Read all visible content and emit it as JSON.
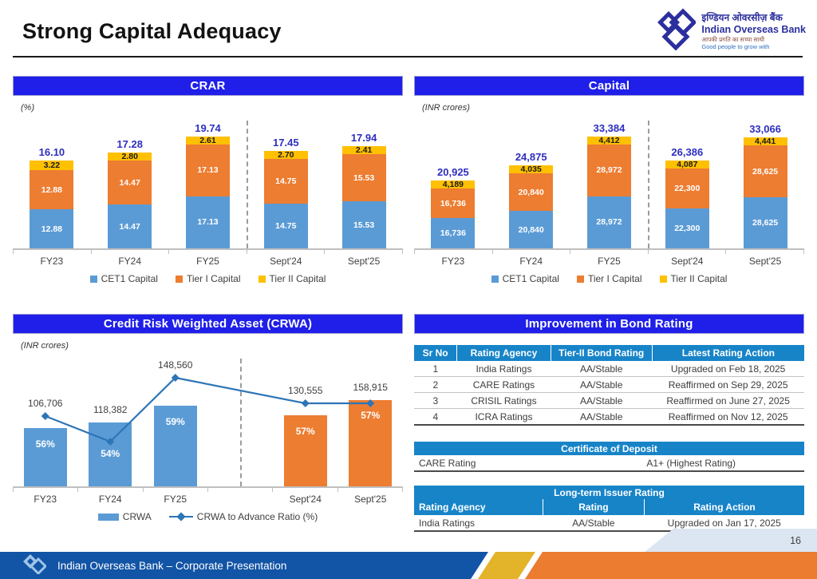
{
  "page": {
    "title": "Strong Capital Adequacy",
    "page_number": "16",
    "footer_text": "Indian Overseas Bank – Corporate Presentation"
  },
  "logo": {
    "name_hi": "इण्डियन ओवरसीज़ बैंक",
    "name_en": "Indian Overseas Bank",
    "tagline_hi": "आपकी प्रगति का सच्चा साथी",
    "tagline_en": "Good people to grow with"
  },
  "colors": {
    "banner_blue": "#1F1FE9",
    "table_header_blue": "#1884C8",
    "bar_blue": "#5B9BD5",
    "bar_orange": "#ED7D31",
    "bar_yellow": "#FFC000",
    "total_label_blue": "#2E2EC0",
    "line_blue": "#2E75B6",
    "footer_blue": "#1254A6",
    "footer_yellow": "#E3B329",
    "footer_orange": "#EC7C30"
  },
  "chart_data": [
    {
      "id": "crar",
      "type": "bar",
      "subtype": "stacked-bar",
      "title": "CRAR",
      "unit_label": "(%)",
      "categories": [
        "FY23",
        "FY24",
        "FY25",
        "Sept'24",
        "Sept'25"
      ],
      "series": [
        {
          "name": "CET1 Capital",
          "color": "#5B9BD5",
          "values": [
            12.88,
            14.47,
            17.13,
            14.75,
            15.53
          ],
          "labels": [
            "12.88",
            "14.47",
            "17.13",
            "14.75",
            "15.53"
          ]
        },
        {
          "name": "Tier I Capital",
          "color": "#ED7D31",
          "values": [
            12.88,
            14.47,
            17.13,
            14.75,
            15.53
          ],
          "labels": [
            "12.88",
            "14.47",
            "17.13",
            "14.75",
            "15.53"
          ]
        },
        {
          "name": "Tier II Capital",
          "color": "#FFC000",
          "dark_label": true,
          "values": [
            3.22,
            2.8,
            2.61,
            2.7,
            2.41
          ],
          "labels": [
            "3.22",
            "2.80",
            "2.61",
            "2.70",
            "2.41"
          ]
        }
      ],
      "totals": [
        "16.10",
        "17.28",
        "19.74",
        "17.45",
        "17.94"
      ],
      "divider_after": 3,
      "legend_position": "bottom"
    },
    {
      "id": "capital",
      "type": "bar",
      "subtype": "stacked-bar",
      "title": "Capital",
      "unit_label": "(INR crores)",
      "categories": [
        "FY23",
        "FY24",
        "FY25",
        "Sept'24",
        "Sept'25"
      ],
      "series": [
        {
          "name": "CET1 Capital",
          "color": "#5B9BD5",
          "values": [
            16736,
            20840,
            28972,
            22300,
            28625
          ],
          "labels": [
            "16,736",
            "20,840",
            "28,972",
            "22,300",
            "28,625"
          ]
        },
        {
          "name": "Tier I Capital",
          "color": "#ED7D31",
          "values": [
            16736,
            20840,
            28972,
            22300,
            28625
          ],
          "labels": [
            "16,736",
            "20,840",
            "28,972",
            "22,300",
            "28,625"
          ]
        },
        {
          "name": "Tier II Capital",
          "color": "#FFC000",
          "dark_label": true,
          "values": [
            4189,
            4035,
            4412,
            4087,
            4441
          ],
          "labels": [
            "4,189",
            "4,035",
            "4,412",
            "4,087",
            "4,441"
          ]
        }
      ],
      "totals": [
        "20,925",
        "24,875",
        "33,384",
        "26,386",
        "33,066"
      ],
      "divider_after": 3,
      "legend_position": "bottom"
    },
    {
      "id": "crwa",
      "type": "bar",
      "subtype": "bar-line-combo",
      "title": "Credit Risk Weighted Asset (CRWA)",
      "unit_label": "(INR crores)",
      "categories": [
        "FY23",
        "FY24",
        "FY25",
        "Sept'24",
        "Sept'25"
      ],
      "axis_slots": [
        "FY23",
        "FY24",
        "FY25",
        "",
        "Sept'24",
        "Sept'25"
      ],
      "slot_count": 6,
      "slots": [
        0,
        1,
        2,
        4,
        5
      ],
      "bars": {
        "name": "CRWA",
        "values": [
          106706,
          118382,
          148560,
          130555,
          158915
        ],
        "labels": [
          "106,706",
          "118,382",
          "148,560",
          "130,555",
          "158,915"
        ],
        "colors": [
          "#5B9BD5",
          "#5B9BD5",
          "#5B9BD5",
          "#ED7D31",
          "#ED7D31"
        ]
      },
      "line": {
        "name": "CRWA to Advance Ratio (%)",
        "color": "#2E75B6",
        "values": [
          56,
          54,
          59,
          57,
          57
        ],
        "labels": [
          "56%",
          "54%",
          "59%",
          "57%",
          "57%"
        ]
      },
      "divider_at_slot": 3.5,
      "legend_position": "bottom"
    }
  ],
  "tables": {
    "bond": {
      "banner": "Improvement in Bond Rating",
      "columns": [
        "Sr No",
        "Rating Agency",
        "Tier-II Bond Rating",
        "Latest Rating Action"
      ],
      "rows": [
        [
          "1",
          "India Ratings",
          "AA/Stable",
          "Upgraded on Feb 18, 2025"
        ],
        [
          "2",
          "CARE Ratings",
          "AA/Stable",
          "Reaffirmed on Sep 29, 2025"
        ],
        [
          "3",
          "CRISIL Ratings",
          "AA/Stable",
          "Reaffirmed on June 27, 2025"
        ],
        [
          "4",
          "ICRA Ratings",
          "AA/Stable",
          "Reaffirmed on Nov 12, 2025"
        ]
      ]
    },
    "cod": {
      "banner": "Certificate of Deposit",
      "rows": [
        [
          "CARE Rating",
          "A1+ (Highest Rating)"
        ]
      ]
    },
    "issuer": {
      "banner": "Long-term Issuer Rating",
      "columns": [
        "Rating Agency",
        "Rating",
        "Rating Action"
      ],
      "rows": [
        [
          "India Ratings",
          "AA/Stable",
          "Upgraded on Jan 17, 2025"
        ]
      ]
    }
  }
}
